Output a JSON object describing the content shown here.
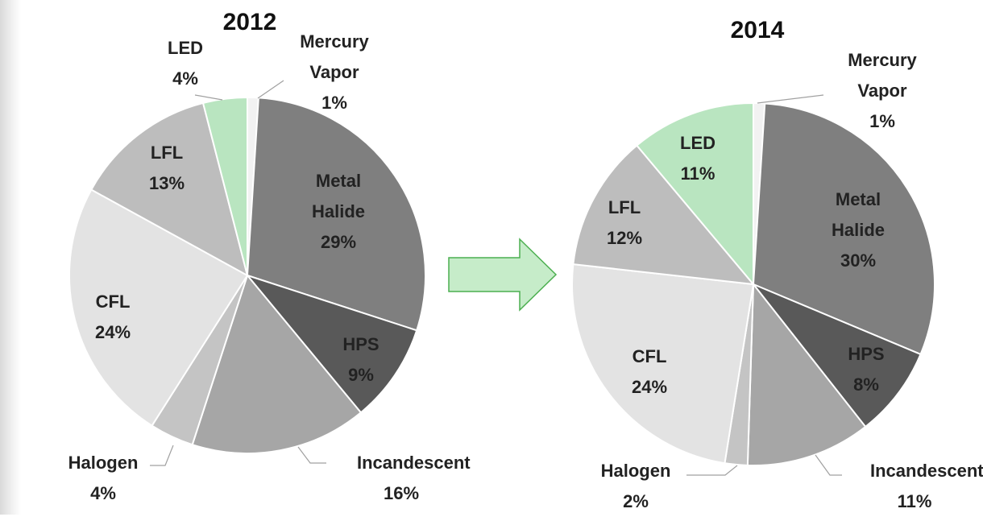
{
  "chart_data": [
    {
      "type": "pie",
      "title": "2012",
      "categories": [
        "Mercury Vapor",
        "Metal Halide",
        "HPS",
        "Incandescent",
        "Halogen",
        "CFL",
        "LFL",
        "LED"
      ],
      "values": [
        1,
        29,
        9,
        16,
        4,
        24,
        13,
        4
      ],
      "value_labels": [
        "1%",
        "29%",
        "9%",
        "16%",
        "4%",
        "24%",
        "13%",
        "4%"
      ],
      "colors": [
        "#f2f2f2",
        "#7f7f7f",
        "#595959",
        "#a6a6a6",
        "#c4c4c4",
        "#e3e3e3",
        "#bdbdbd",
        "#b9e5c0"
      ]
    },
    {
      "type": "pie",
      "title": "2014",
      "categories": [
        "Mercury Vapor",
        "Metal Halide",
        "HPS",
        "Incandescent",
        "Halogen",
        "CFL",
        "LFL",
        "LED"
      ],
      "values": [
        1,
        30,
        8,
        11,
        2,
        24,
        12,
        11
      ],
      "value_labels": [
        "1%",
        "30%",
        "8%",
        "11%",
        "2%",
        "24%",
        "12%",
        "11%"
      ],
      "colors": [
        "#f2f2f2",
        "#7f7f7f",
        "#595959",
        "#a6a6a6",
        "#c4c4c4",
        "#e3e3e3",
        "#bdbdbd",
        "#b9e5c0"
      ]
    }
  ]
}
